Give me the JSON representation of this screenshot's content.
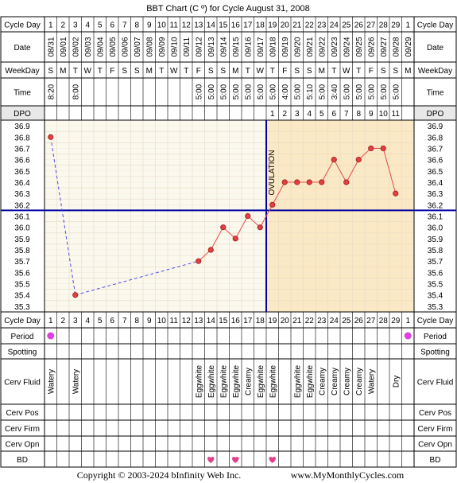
{
  "title": "BBT Chart (C º) for Cycle August 31, 2008",
  "copyright": "Copyright © 2003-2024 bInfinity Web Inc.",
  "website": "www.MyMonthlyCycles.com",
  "ovulation_label": "OVULATION",
  "row_labels": {
    "cycle_day": "Cycle Day",
    "date": "Date",
    "weekday": "WeekDay",
    "time": "Time",
    "dpo": "DPO",
    "period": "Period",
    "spotting": "Spotting",
    "cerv_fluid": "Cerv Fluid",
    "cerv_pos": "Cerv Pos",
    "cerv_firm": "Cerv Firm",
    "cerv_opn": "Cerv Opn",
    "bd": "BD"
  },
  "colors": {
    "grid_bg": "#fbf8ee",
    "post_ovulation_bg": "#fbe8c4",
    "line": "#e05050",
    "dashed_line": "#5050e0",
    "point_fill": "#e04040",
    "coverline": "#0000a0",
    "ovulation_line": "#0000a0",
    "period_dot": "#e040e0",
    "bd_heart": "#e0408a",
    "left_col_bg": "#e8e8e8"
  },
  "chart_data": {
    "type": "line",
    "title": "BBT Chart (C º) for Cycle August 31, 2008",
    "cycle_days": [
      "1",
      "2",
      "3",
      "4",
      "5",
      "6",
      "7",
      "8",
      "9",
      "10",
      "11",
      "12",
      "13",
      "14",
      "15",
      "16",
      "17",
      "18",
      "19",
      "20",
      "21",
      "22",
      "23",
      "24",
      "25",
      "26",
      "27",
      "28",
      "29",
      "1"
    ],
    "dates": [
      "08/31",
      "09/01",
      "09/02",
      "09/03",
      "09/04",
      "09/05",
      "09/06",
      "09/07",
      "09/08",
      "09/09",
      "09/10",
      "09/11",
      "09/12",
      "09/13",
      "09/14",
      "09/15",
      "09/16",
      "09/17",
      "09/18",
      "09/19",
      "09/20",
      "09/21",
      "09/22",
      "09/23",
      "09/24",
      "09/25",
      "09/26",
      "09/27",
      "09/28",
      "09/29"
    ],
    "weekdays": [
      "S",
      "M",
      "T",
      "W",
      "T",
      "F",
      "S",
      "S",
      "M",
      "T",
      "W",
      "T",
      "F",
      "S",
      "S",
      "M",
      "T",
      "W",
      "T",
      "F",
      "S",
      "S",
      "M",
      "T",
      "W",
      "T",
      "F",
      "S",
      "S",
      "M"
    ],
    "times": [
      "8:20",
      "",
      "8:00",
      "",
      "",
      "",
      "",
      "",
      "",
      "",
      "",
      "",
      "5:00",
      "5:00",
      "5:00",
      "5:00",
      "5:00",
      "5:00",
      "5:00",
      "4:00",
      "5:00",
      "5:10",
      "5:00",
      "3:40",
      "5:00",
      "5:00",
      "5:00",
      "5:00",
      "5:00",
      ""
    ],
    "dpo": [
      "",
      "",
      "",
      "",
      "",
      "",
      "",
      "",
      "",
      "",
      "",
      "",
      "",
      "",
      "",
      "",
      "",
      "",
      "1",
      "2",
      "3",
      "4",
      "5",
      "6",
      "7",
      "8",
      "9",
      "10",
      "11",
      ""
    ],
    "y_ticks": [
      "36.9",
      "36.8",
      "36.7",
      "36.6",
      "36.5",
      "36.4",
      "36.3",
      "36.2",
      "36.1",
      "36.0",
      "35.9",
      "35.8",
      "35.7",
      "35.6",
      "35.5",
      "35.4",
      "35.3"
    ],
    "ylim": [
      35.3,
      36.9
    ],
    "temperatures": [
      36.8,
      null,
      35.4,
      null,
      null,
      null,
      null,
      null,
      null,
      null,
      null,
      null,
      35.7,
      35.8,
      36.0,
      35.9,
      36.1,
      36.0,
      36.2,
      36.4,
      36.4,
      36.4,
      36.4,
      36.6,
      36.4,
      36.6,
      36.7,
      36.7,
      36.3,
      null
    ],
    "coverline": 36.15,
    "ovulation_after_index": 17,
    "period": [
      true,
      false,
      false,
      false,
      false,
      false,
      false,
      false,
      false,
      false,
      false,
      false,
      false,
      false,
      false,
      false,
      false,
      false,
      false,
      false,
      false,
      false,
      false,
      false,
      false,
      false,
      false,
      false,
      false,
      true
    ],
    "cerv_fluid": [
      "Watery",
      "",
      "Watery",
      "",
      "",
      "",
      "",
      "",
      "",
      "",
      "",
      "",
      "Eggwhite",
      "Eggwhite",
      "Eggwhite",
      "Eggwhite",
      "Creamy",
      "Eggwhite",
      "Eggwhite",
      "",
      "Eggwhite",
      "Eggwhite",
      "Creamy",
      "Creamy",
      "Creamy",
      "Creamy",
      "Watery",
      "",
      "Dry",
      ""
    ],
    "bd": [
      false,
      false,
      false,
      false,
      false,
      false,
      false,
      false,
      false,
      false,
      false,
      false,
      false,
      true,
      false,
      true,
      false,
      false,
      true,
      false,
      false,
      false,
      false,
      false,
      false,
      false,
      false,
      false,
      false,
      false
    ]
  }
}
